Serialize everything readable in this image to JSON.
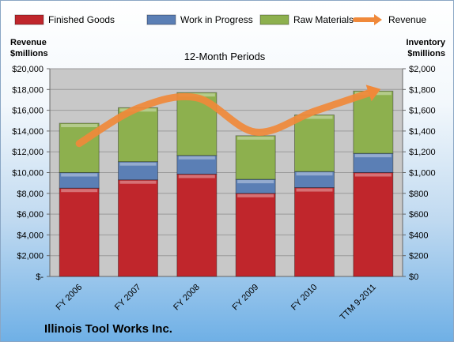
{
  "chart_data": {
    "type": "bar",
    "subtitle": "12-Month Periods",
    "company": "Illinois Tool Works Inc.",
    "categories": [
      "FY 2006",
      "FY 2007",
      "FY 2008",
      "FY 2009",
      "FY 2010",
      "TTM 9-2011"
    ],
    "series": [
      {
        "name": "Finished Goods",
        "color": "#c0262c",
        "values": [
          850,
          930,
          985,
          800,
          855,
          1000
        ]
      },
      {
        "name": "Work in Progress",
        "color": "#5b7fb5",
        "values": [
          150,
          175,
          180,
          135,
          155,
          185
        ]
      },
      {
        "name": "Raw Materials",
        "color": "#8db04e",
        "values": [
          475,
          520,
          605,
          420,
          545,
          600
        ]
      },
      {
        "name": "Revenue",
        "color": "#f0893a",
        "type": "line",
        "axis": "left",
        "values": [
          12800,
          16200,
          17200,
          13900,
          15900,
          17800
        ]
      }
    ],
    "left_axis": {
      "title_line1": "Revenue",
      "title_line2": "$millions",
      "range": [
        0,
        20000
      ],
      "ticks": [
        "$-",
        "$2,000",
        "$4,000",
        "$6,000",
        "$8,000",
        "$10,000",
        "$12,000",
        "$14,000",
        "$16,000",
        "$18,000",
        "$20,000"
      ]
    },
    "right_axis": {
      "title_line1": "Inventory",
      "title_line2": "$millions",
      "range": [
        0,
        2000
      ],
      "ticks": [
        "$0",
        "$200",
        "$400",
        "$600",
        "$800",
        "$1,000",
        "$1,200",
        "$1,400",
        "$1,600",
        "$1,800",
        "$2,000"
      ]
    },
    "plot_background": "#c8c8c8",
    "grid": true,
    "legend_position": "top"
  }
}
